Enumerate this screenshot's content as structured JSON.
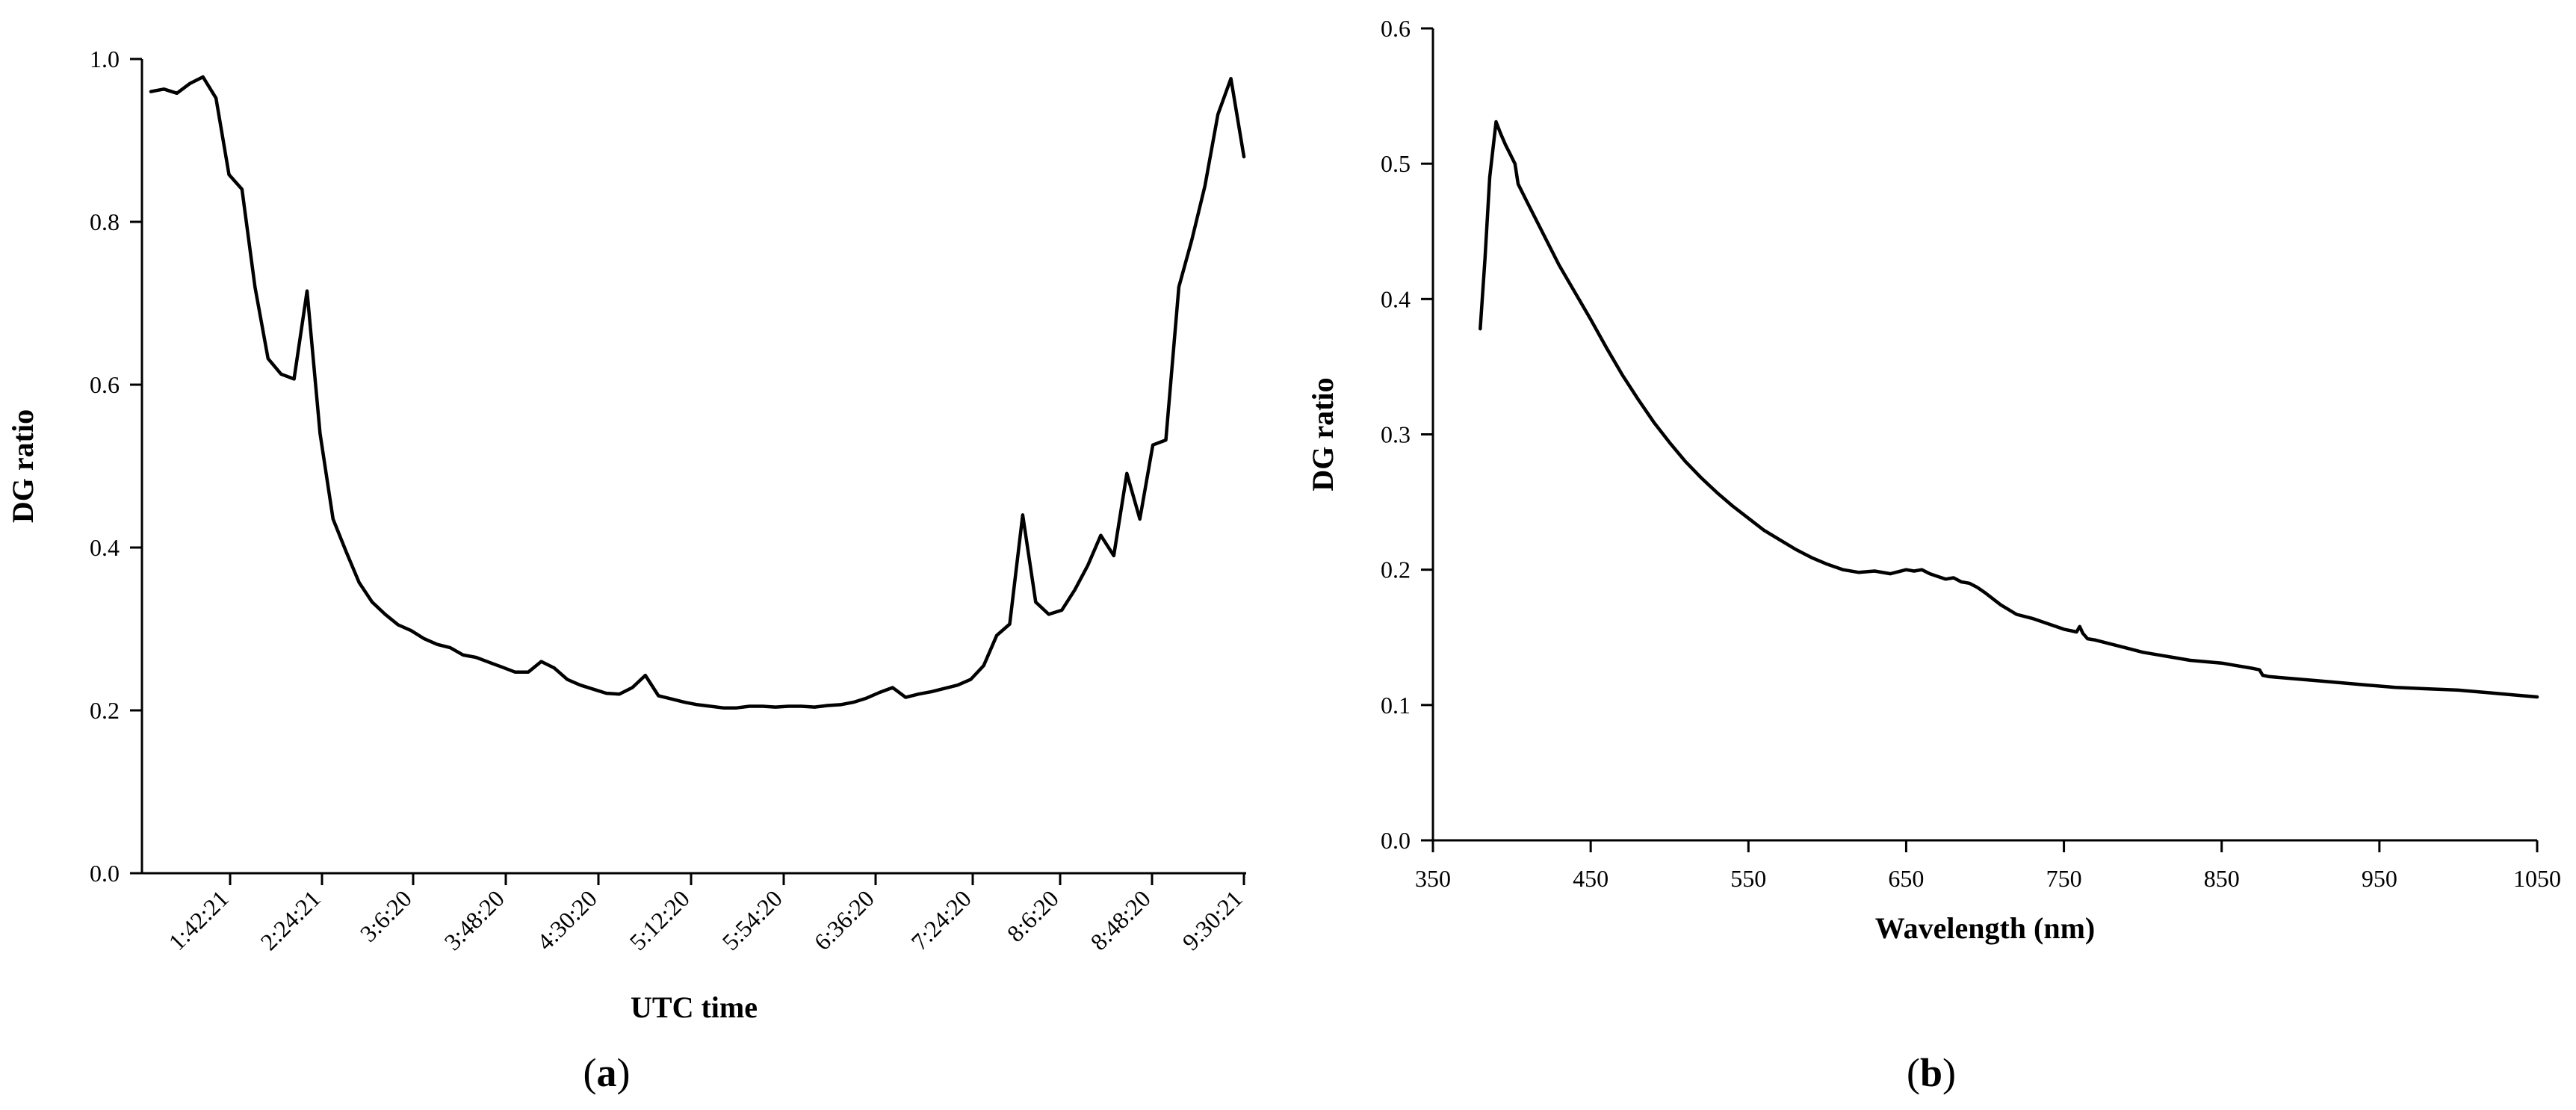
{
  "chart_data": [
    {
      "type": "line",
      "panel_label": "a",
      "xlabel": "UTC time",
      "ylabel": "DG ratio",
      "ylim": [
        0,
        1.0
      ],
      "y_ticks": [
        "0.0",
        "0.2",
        "0.4",
        "0.6",
        "0.8",
        "1.0"
      ],
      "x_ticks": [
        "1:42:21",
        "2:24:21",
        "3:6:20",
        "3:48:20",
        "4:30:20",
        "5:12:20",
        "5:54:20",
        "6:36:20",
        "7:24:20",
        "8:6:20",
        "8:48:20",
        "9:30:21"
      ],
      "grid": false,
      "series": [
        {
          "values": [
            0.96,
            0.963,
            0.958,
            0.97,
            0.978,
            0.952,
            0.858,
            0.84,
            0.72,
            0.632,
            0.613,
            0.607,
            0.715,
            0.54,
            0.435,
            0.395,
            0.357,
            0.333,
            0.318,
            0.305,
            0.298,
            0.288,
            0.281,
            0.277,
            0.268,
            0.265,
            0.259,
            0.253,
            0.247,
            0.247,
            0.26,
            0.252,
            0.238,
            0.231,
            0.226,
            0.221,
            0.22,
            0.228,
            0.243,
            0.218,
            0.214,
            0.21,
            0.207,
            0.205,
            0.203,
            0.203,
            0.205,
            0.205,
            0.204,
            0.205,
            0.205,
            0.204,
            0.206,
            0.207,
            0.21,
            0.215,
            0.222,
            0.228,
            0.216,
            0.22,
            0.223,
            0.227,
            0.231,
            0.238,
            0.255,
            0.292,
            0.306,
            0.44,
            0.333,
            0.318,
            0.323,
            0.348,
            0.378,
            0.415,
            0.39,
            0.491,
            0.435,
            0.526,
            0.532,
            0.72,
            0.778,
            0.844,
            0.932,
            0.976,
            0.88
          ]
        }
      ]
    },
    {
      "type": "line",
      "panel_label": "b",
      "xlabel": "Wavelength (nm)",
      "ylabel": "DG ratio",
      "xlim": [
        350,
        1050
      ],
      "ylim": [
        0,
        0.6
      ],
      "x_ticks": [
        "350",
        "450",
        "550",
        "650",
        "750",
        "850",
        "950",
        "1050"
      ],
      "y_ticks": [
        "0.0",
        "0.1",
        "0.2",
        "0.3",
        "0.4",
        "0.5",
        "0.6"
      ],
      "grid": false,
      "series": [
        {
          "x": [
            380,
            383,
            386,
            390,
            393,
            396,
            399,
            402,
            404,
            410,
            420,
            430,
            440,
            450,
            460,
            470,
            480,
            490,
            500,
            510,
            520,
            530,
            540,
            550,
            560,
            570,
            580,
            590,
            600,
            610,
            620,
            630,
            640,
            650,
            655,
            660,
            665,
            670,
            675,
            680,
            685,
            690,
            695,
            700,
            710,
            720,
            730,
            740,
            750,
            758,
            760,
            762,
            765,
            770,
            780,
            790,
            800,
            810,
            820,
            830,
            840,
            850,
            860,
            870,
            874,
            876,
            880,
            900,
            920,
            940,
            960,
            980,
            1000,
            1020,
            1040,
            1050
          ],
          "y": [
            0.378,
            0.43,
            0.49,
            0.531,
            0.522,
            0.514,
            0.507,
            0.5,
            0.485,
            0.471,
            0.448,
            0.425,
            0.405,
            0.385,
            0.364,
            0.344,
            0.326,
            0.309,
            0.294,
            0.28,
            0.268,
            0.257,
            0.247,
            0.238,
            0.229,
            0.222,
            0.215,
            0.209,
            0.204,
            0.2,
            0.198,
            0.199,
            0.197,
            0.2,
            0.199,
            0.2,
            0.197,
            0.195,
            0.193,
            0.194,
            0.191,
            0.19,
            0.187,
            0.183,
            0.174,
            0.167,
            0.164,
            0.16,
            0.156,
            0.154,
            0.158,
            0.153,
            0.149,
            0.148,
            0.145,
            0.142,
            0.139,
            0.137,
            0.135,
            0.133,
            0.132,
            0.131,
            0.129,
            0.127,
            0.126,
            0.122,
            0.121,
            0.119,
            0.117,
            0.115,
            0.113,
            0.112,
            0.111,
            0.109,
            0.107,
            0.106
          ]
        }
      ]
    }
  ]
}
